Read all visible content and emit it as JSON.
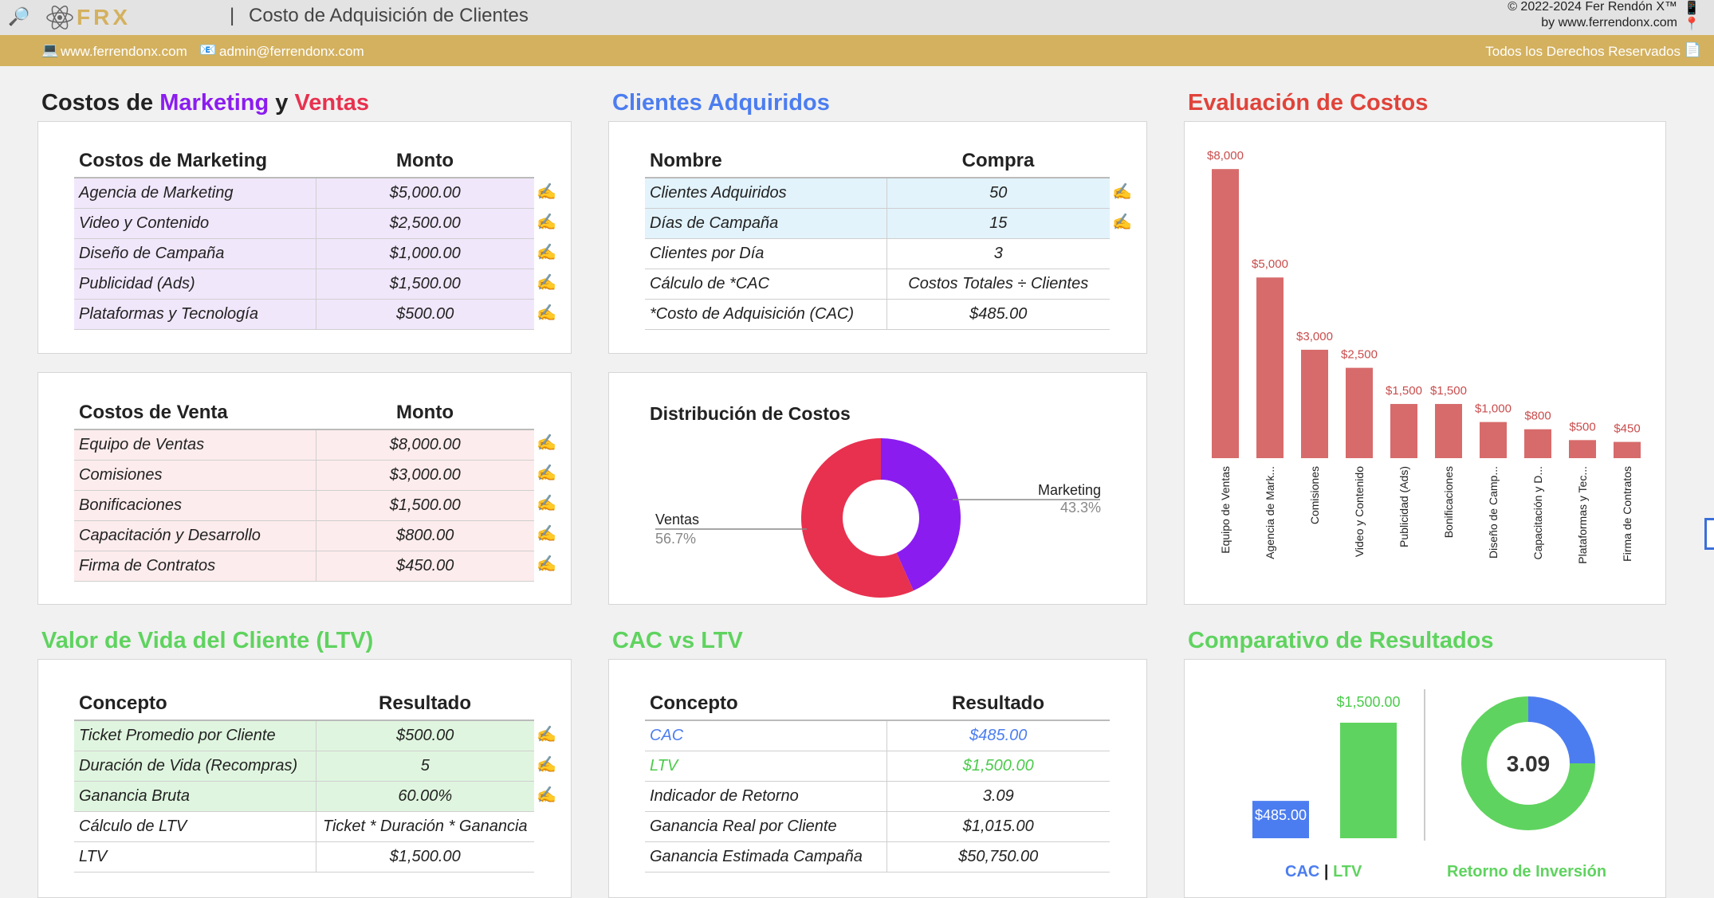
{
  "header": {
    "logo_text": "FRX",
    "separator": "|",
    "title": "Costo de Adquisición de Clientes",
    "copyright_line1": "© 2022-2024 Fer Rendón X™",
    "copyright_line2": "by www.ferrendonx.com",
    "website": "www.ferrendonx.com",
    "email": "admin@ferrendonx.com",
    "rights": "Todos los Derechos Reservados"
  },
  "colors": {
    "gold": "#d4b15f",
    "purple": "#8b1cf0",
    "red": "#e8314f",
    "blue": "#4c7df0",
    "green": "#5fd35f",
    "bar_red": "#d76b6b"
  },
  "sections": {
    "marketing_ventas": {
      "prefix": "Costos de ",
      "marketing": "Marketing",
      "and": " y ",
      "ventas": "Ventas"
    },
    "clientes": "Clientes Adquiridos",
    "evaluacion": "Evaluación de Costos",
    "ltv": "Valor de Vida del Cliente (LTV)",
    "cac_ltv": "CAC vs LTV",
    "comparativo": "Comparativo de Resultados"
  },
  "marketing_table": {
    "headers": [
      "Costos de Marketing",
      "Monto"
    ],
    "rows": [
      [
        "Agencia de Marketing",
        "$5,000.00"
      ],
      [
        "Video y Contenido",
        "$2,500.00"
      ],
      [
        "Diseño de Campaña",
        "$1,000.00"
      ],
      [
        "Publicidad (Ads)",
        "$1,500.00"
      ],
      [
        "Plataformas y Tecnología",
        "$500.00"
      ]
    ]
  },
  "ventas_table": {
    "headers": [
      "Costos de Venta",
      "Monto"
    ],
    "rows": [
      [
        "Equipo de Ventas",
        "$8,000.00"
      ],
      [
        "Comisiones",
        "$3,000.00"
      ],
      [
        "Bonificaciones",
        "$1,500.00"
      ],
      [
        "Capacitación y Desarrollo",
        "$800.00"
      ],
      [
        "Firma de Contratos",
        "$450.00"
      ]
    ]
  },
  "clientes_table": {
    "headers": [
      "Nombre",
      "Compra"
    ],
    "rows": [
      [
        "Clientes Adquiridos",
        "50"
      ],
      [
        "Días de Campaña",
        "15"
      ],
      [
        "Clientes por Día",
        "3"
      ],
      [
        "Cálculo de *CAC",
        "Costos Totales ÷ Clientes"
      ],
      [
        "*Costo de Adquisición (CAC)",
        "$485.00"
      ]
    ]
  },
  "ltv_table": {
    "headers": [
      "Concepto",
      "Resultado"
    ],
    "rows": [
      [
        "Ticket Promedio por Cliente",
        "$500.00"
      ],
      [
        "Duración de Vida (Recompras)",
        "5"
      ],
      [
        "Ganancia Bruta",
        "60.00%"
      ],
      [
        "Cálculo de LTV",
        "Ticket * Duración * Ganancia"
      ],
      [
        "LTV",
        "$1,500.00"
      ]
    ]
  },
  "cac_ltv_table": {
    "headers": [
      "Concepto",
      "Resultado"
    ],
    "rows": [
      [
        "CAC",
        "$485.00"
      ],
      [
        "LTV",
        "$1,500.00"
      ],
      [
        "Indicador de Retorno",
        "3.09"
      ],
      [
        "Ganancia Real por Cliente",
        "$1,015.00"
      ],
      [
        "Ganancia Estimada Campaña",
        "$50,750.00"
      ]
    ]
  },
  "edit_icon": "✍",
  "chart_data": [
    {
      "type": "pie",
      "title": "Distribución de Costos",
      "categories": [
        "Marketing",
        "Ventas"
      ],
      "values": [
        43.3,
        56.7
      ],
      "labels": [
        "43.3%",
        "56.7%"
      ],
      "colors": [
        "#8b1cf0",
        "#e8314f"
      ],
      "donut": true
    },
    {
      "type": "bar",
      "title": "",
      "categories": [
        "Equipo de Ventas",
        "Agencia de Mark...",
        "Comisiones",
        "Video y Contenido",
        "Publicidad (Ads)",
        "Bonificaciones",
        "Diseño de Camp...",
        "Capacitación y D...",
        "Plataformas y Tec...",
        "Firma de Contratos"
      ],
      "values": [
        8000,
        5000,
        3000,
        2500,
        1500,
        1500,
        1000,
        800,
        500,
        450
      ],
      "labels": [
        "$8,000",
        "$5,000",
        "$3,000",
        "$2,500",
        "$1,500",
        "$1,500",
        "$1,000",
        "$800",
        "$500",
        "$450"
      ],
      "ylim": [
        0,
        8000
      ],
      "color": "#d76b6b"
    },
    {
      "type": "bar",
      "title": "",
      "categories": [
        "CAC",
        "LTV"
      ],
      "values": [
        485,
        1500
      ],
      "labels": [
        "$485.00",
        "$1,500.00"
      ],
      "colors": [
        "#4c7df0",
        "#5fd35f"
      ],
      "xlabel_cac": "CAC",
      "xlabel_sep": "|",
      "xlabel_ltv": "LTV"
    },
    {
      "type": "pie",
      "title": "",
      "center_label": "3.09",
      "values": [
        25,
        75
      ],
      "colors": [
        "#4c7df0",
        "#5fd35f"
      ],
      "caption": "Retorno de Inversión",
      "donut": true
    }
  ]
}
